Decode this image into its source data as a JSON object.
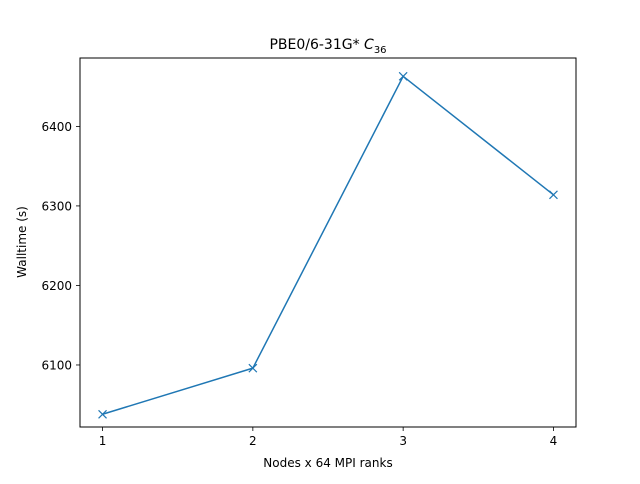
{
  "chart_data": {
    "type": "line",
    "title": "PBE0/6-31G* ",
    "title_math": "C",
    "title_math_sub": "36",
    "xlabel": "Nodes x 64 MPI ranks",
    "ylabel": "Walltime (s)",
    "x": [
      1,
      2,
      3,
      4
    ],
    "x_tick_labels": [
      "1",
      "2",
      "3",
      "4"
    ],
    "y_ticks": [
      6100,
      6200,
      6300,
      6400
    ],
    "y_tick_labels": [
      "6100",
      "6200",
      "6300",
      "6400"
    ],
    "xlim": [
      0.85,
      4.15
    ],
    "ylim": [
      6022,
      6486
    ],
    "grid": false,
    "series": [
      {
        "values": [
          6038,
          6096,
          6463,
          6314
        ],
        "color": "#1f77b4",
        "marker": "x"
      }
    ]
  }
}
